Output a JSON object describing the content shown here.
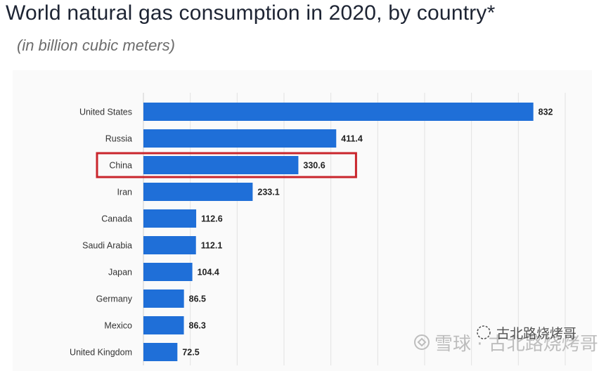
{
  "chart_data": {
    "type": "bar",
    "orientation": "horizontal",
    "title": "World natural gas consumption in 2020, by country*",
    "subtitle": "(in billion cubic meters)",
    "categories": [
      "United States",
      "Russia",
      "China",
      "Iran",
      "Canada",
      "Saudi Arabia",
      "Japan",
      "Germany",
      "Mexico",
      "United Kingdom"
    ],
    "values": [
      832,
      411.4,
      330.6,
      233.1,
      112.6,
      112.1,
      104.4,
      86.5,
      86.3,
      72.5
    ],
    "value_labels": [
      "832",
      "411.4",
      "330.6",
      "233.1",
      "112.6",
      "112.1",
      "104.4",
      "86.5",
      "86.3",
      "72.5"
    ],
    "xlim": [
      0,
      900
    ],
    "grid": true,
    "highlight": "China",
    "bar_color": "#1f6fd8",
    "highlight_color": "#c9252c"
  },
  "watermark": {
    "primary": "雪球 · 古北路烧烤哥",
    "secondary": "古北路烧烤哥"
  }
}
